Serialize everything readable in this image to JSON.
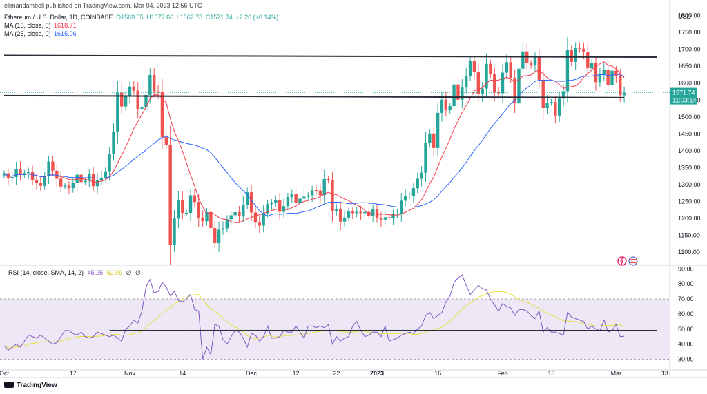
{
  "header": {
    "author": "elimandambell published on TradingView.com, Mar 04, 2023 12:56 UTC",
    "symbol": "Ethereum / U.S. Dollar, 1D, COINBASE",
    "o": "O1569.55",
    "h": "H1577.60",
    "l": "L1562.78",
    "c": "C1571.74",
    "chg": "+2.20 (+0.14%)",
    "ma10_label": "MA (10, close, 0)",
    "ma10_val": "1618.71",
    "ma25_label": "MA (25, close, 0)",
    "ma25_val": "1615.96"
  },
  "rsi_header": {
    "label": "RSI (14, close, SMA, 14, 2)",
    "v1": "45.25",
    "v2": "52.09",
    "v3": "∅",
    "v4": "∅"
  },
  "footer": {
    "brand": "TradingView"
  },
  "colors": {
    "up": "#26a69a",
    "down": "#ef5350",
    "ma10": "#f23645",
    "ma25": "#2962ff",
    "rsi": "#7e57c2",
    "rsi_ma": "#e6e23c",
    "band": "#ede7f6"
  },
  "chart_data": [
    {
      "type": "candlestick",
      "currency": "USD",
      "price_axis": {
        "ticks": [
          1100,
          1150,
          1200,
          1250,
          1300,
          1350,
          1400,
          1450,
          1500,
          1550,
          1600,
          1650,
          1700,
          1750,
          1800
        ],
        "range": [
          1065,
          1830
        ]
      },
      "last_price_label": {
        "price": "1571.74",
        "countdown": "11:03:14",
        "value": 1571.74
      },
      "x_axis_labels": [
        {
          "label": "Oct",
          "day": 0
        },
        {
          "label": "17",
          "day": 17
        },
        {
          "label": "Nov",
          "day": 31
        },
        {
          "label": "14",
          "day": 44
        },
        {
          "label": "Dec",
          "day": 61
        },
        {
          "label": "12",
          "day": 72
        },
        {
          "label": "22",
          "day": 82
        },
        {
          "label": "2023",
          "day": 92
        },
        {
          "label": "16",
          "day": 107
        },
        {
          "label": "Feb",
          "day": 123
        },
        {
          "label": "13",
          "day": 135
        },
        {
          "label": "Mar",
          "day": 151
        },
        {
          "label": "13",
          "day": 163
        }
      ],
      "close": [
        1333,
        1318,
        1322,
        1346,
        1328,
        1334,
        1338,
        1313,
        1305,
        1296,
        1325,
        1368,
        1341,
        1317,
        1294,
        1297,
        1289,
        1304,
        1329,
        1307,
        1311,
        1332,
        1295,
        1313,
        1320,
        1339,
        1391,
        1457,
        1572,
        1531,
        1563,
        1590,
        1578,
        1524,
        1528,
        1565,
        1624,
        1576,
        1573,
        1440,
        1418,
        1122,
        1199,
        1254,
        1216,
        1216,
        1268,
        1248,
        1202,
        1191,
        1218,
        1171,
        1126,
        1166,
        1170,
        1197,
        1209,
        1218,
        1207,
        1240,
        1277,
        1217,
        1187,
        1178,
        1215,
        1242,
        1245,
        1253,
        1219,
        1236,
        1263,
        1272,
        1245,
        1258,
        1264,
        1268,
        1283,
        1282,
        1268,
        1316,
        1312,
        1221,
        1227,
        1190,
        1202,
        1220,
        1215,
        1219,
        1215,
        1219,
        1207,
        1226,
        1201,
        1196,
        1203,
        1200,
        1212,
        1214,
        1252,
        1265,
        1267,
        1289,
        1317,
        1335,
        1422,
        1451,
        1408,
        1512,
        1551,
        1520,
        1532,
        1596,
        1551,
        1589,
        1622,
        1665,
        1634,
        1567,
        1584,
        1657,
        1628,
        1574,
        1570,
        1631,
        1662,
        1616,
        1540,
        1643,
        1694,
        1659,
        1652,
        1676,
        1610,
        1526,
        1542,
        1544,
        1504,
        1554,
        1576,
        1698,
        1663,
        1704,
        1702,
        1692,
        1644,
        1660,
        1603,
        1628,
        1640,
        1595,
        1637,
        1620,
        1564,
        1571.74
      ],
      "moving_averages": [
        {
          "name": "MA (10, close, 0)",
          "window": 10
        },
        {
          "name": "MA (25, close, 0)",
          "window": 25
        }
      ],
      "annotations": [
        {
          "type": "horizontal_line",
          "from_day": 0,
          "to_day": 161,
          "value_start": 1682,
          "value_end": 1677
        },
        {
          "type": "horizontal_line",
          "from_day": 0,
          "to_day": 153,
          "value_start": 1563,
          "value_end": 1557
        }
      ]
    },
    {
      "type": "line",
      "title": "RSI (14, close, SMA, 14, 2)",
      "y_axis": {
        "ticks": [
          30,
          40,
          50,
          60,
          70,
          80,
          90
        ],
        "range": [
          27,
          92
        ]
      },
      "band": [
        30,
        70
      ],
      "midline": 50,
      "rsi": [
        39,
        36,
        38,
        40,
        38,
        42,
        46,
        45,
        44,
        46,
        44,
        42,
        40,
        41,
        45,
        49,
        49,
        47,
        46,
        48,
        45,
        44,
        45,
        48,
        47,
        46,
        45,
        46,
        44,
        42,
        50,
        52,
        56,
        54,
        62,
        78,
        83,
        74,
        75,
        81,
        78,
        72,
        75,
        69,
        68,
        70,
        73,
        63,
        62,
        30,
        38,
        33,
        53,
        52,
        43,
        40,
        45,
        49,
        48,
        44,
        38,
        47,
        46,
        42,
        45,
        52,
        44,
        44,
        45,
        49,
        48,
        48,
        52,
        48,
        44,
        52,
        52,
        51,
        52,
        51,
        53,
        40,
        45,
        42,
        44,
        45,
        52,
        55,
        49,
        45,
        46,
        48,
        48,
        45,
        52,
        42,
        43,
        44,
        46,
        47,
        48,
        47,
        50,
        52,
        59,
        61,
        57,
        59,
        61,
        68,
        72,
        81,
        84,
        86,
        79,
        73,
        76,
        79,
        77,
        76,
        70,
        66,
        62,
        67,
        65,
        64,
        59,
        63,
        63,
        62,
        59,
        57,
        62,
        48,
        51,
        48,
        48,
        47,
        46,
        61,
        58,
        57,
        56,
        55,
        50,
        52,
        50,
        49,
        56,
        48,
        49,
        53,
        45,
        45.25
      ],
      "rsi_ma_value": 52.09,
      "annotations": [
        {
          "type": "horizontal_line",
          "from_day": 26,
          "to_day": 161,
          "value": 49
        }
      ]
    }
  ]
}
